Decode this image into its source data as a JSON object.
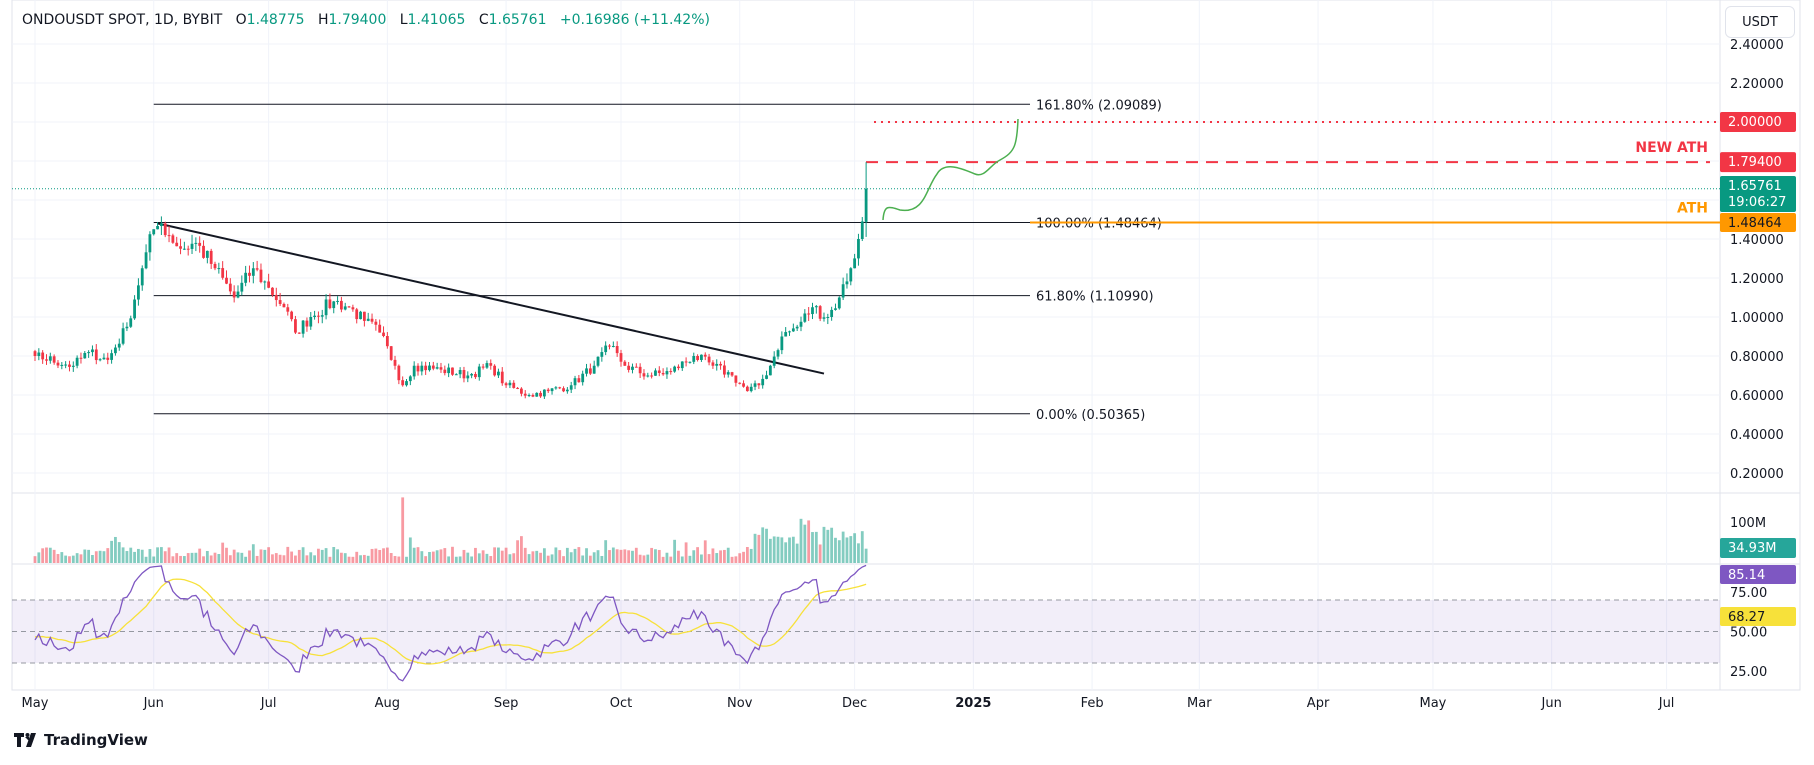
{
  "header": {
    "symbol": "ONDOUSDT SPOT, 1D, BYBIT",
    "o_label": "O",
    "o": "1.48775",
    "h_label": "H",
    "h": "1.79400",
    "l_label": "L",
    "l": "1.41065",
    "c_label": "C",
    "c": "1.65761",
    "change": "+0.16986 (+11.42%)"
  },
  "currency_button": "USDT",
  "branding": "TradingView",
  "chart_data": {
    "type": "candlestick",
    "title": "ONDOUSDT SPOT, 1D, BYBIT",
    "start_date": "2024-05-01",
    "anchors": [
      [
        -30,
        0.85
      ],
      [
        0,
        0.8
      ],
      [
        10,
        0.75
      ],
      [
        14,
        0.82
      ],
      [
        19,
        0.78
      ],
      [
        24,
        0.95
      ],
      [
        28,
        1.25
      ],
      [
        31,
        1.45
      ],
      [
        33,
        1.48
      ],
      [
        38,
        1.35
      ],
      [
        42,
        1.38
      ],
      [
        47,
        1.25
      ],
      [
        52,
        1.1
      ],
      [
        57,
        1.25
      ],
      [
        61,
        1.15
      ],
      [
        65,
        1.05
      ],
      [
        68,
        0.92
      ],
      [
        72,
        1.0
      ],
      [
        78,
        1.08
      ],
      [
        82,
        1.05
      ],
      [
        86,
        0.98
      ],
      [
        90,
        0.92
      ],
      [
        94,
        0.75
      ],
      [
        96,
        0.65
      ],
      [
        99,
        0.75
      ],
      [
        106,
        0.73
      ],
      [
        113,
        0.7
      ],
      [
        119,
        0.75
      ],
      [
        123,
        0.65
      ],
      [
        129,
        0.6
      ],
      [
        134,
        0.62
      ],
      [
        140,
        0.65
      ],
      [
        146,
        0.75
      ],
      [
        150,
        0.85
      ],
      [
        154,
        0.75
      ],
      [
        160,
        0.7
      ],
      [
        166,
        0.72
      ],
      [
        172,
        0.8
      ],
      [
        177,
        0.75
      ],
      [
        182,
        0.7
      ],
      [
        186,
        0.62
      ],
      [
        189,
        0.65
      ],
      [
        192,
        0.75
      ],
      [
        195,
        0.9
      ],
      [
        199,
        0.95
      ],
      [
        203,
        1.05
      ],
      [
        207,
        1.0
      ],
      [
        210,
        1.1
      ],
      [
        213,
        1.25
      ],
      [
        215,
        1.4
      ],
      [
        216,
        1.49
      ]
    ],
    "last_candle": {
      "o": 1.48775,
      "h": 1.794,
      "l": 1.41065,
      "c": 1.65761
    },
    "price_ticks": [
      "2.40000",
      "2.20000",
      "1.40000",
      "1.20000",
      "1.00000",
      "0.80000",
      "0.60000",
      "0.40000",
      "0.20000"
    ],
    "price_tick_values": [
      2.4,
      2.2,
      1.4,
      1.2,
      1.0,
      0.8,
      0.6,
      0.4,
      0.2
    ],
    "time_labels": [
      [
        "May",
        0
      ],
      [
        "Jun",
        31
      ],
      [
        "Jul",
        61
      ],
      [
        "Aug",
        92
      ],
      [
        "Sep",
        123
      ],
      [
        "Oct",
        153
      ],
      [
        "Nov",
        184
      ],
      [
        "Dec",
        214
      ],
      [
        "2025",
        245
      ],
      [
        "Feb",
        276
      ],
      [
        "Mar",
        304
      ],
      [
        "Apr",
        335
      ],
      [
        "May",
        365
      ],
      [
        "Jun",
        396
      ],
      [
        "Jul",
        426
      ]
    ],
    "fib_levels": [
      {
        "label": "161.80% (2.09089)",
        "value": 2.09089
      },
      {
        "label": "100.00% (1.48464)",
        "value": 1.48464
      },
      {
        "label": "61.80% (1.10990)",
        "value": 1.1099
      },
      {
        "label": "0.00% (0.50365)",
        "value": 0.50365
      }
    ],
    "trendline": [
      [
        32,
        1.48
      ],
      [
        206,
        0.71
      ]
    ],
    "target_line": {
      "value": 2.0,
      "tag": "2.00000",
      "color": "#f23645"
    },
    "new_ath": {
      "value": 1.794,
      "tag": "1.79400",
      "label": "NEW ATH",
      "color": "#f23645"
    },
    "ath": {
      "value": 1.48464,
      "tag": "1.48464",
      "label": "ATH",
      "color": "#ff9800"
    },
    "current_price": {
      "value": 1.65761,
      "tag": "1.65761",
      "countdown": "19:06:27",
      "color": "#089981"
    },
    "colors": {
      "up": "#089981",
      "down": "#f23645",
      "rsi": "#7e57c2",
      "rsi_ma": "#f7e13a",
      "projection": "#4caf50"
    },
    "volume": {
      "tick": "100M",
      "current": "34.93M"
    },
    "rsi": {
      "ticks": [
        "75.00",
        "50.00",
        "25.00"
      ],
      "tick_values": [
        75,
        50,
        25
      ],
      "value": "85.14",
      "ma": "68.27",
      "upper": 70,
      "lower": 30
    }
  }
}
